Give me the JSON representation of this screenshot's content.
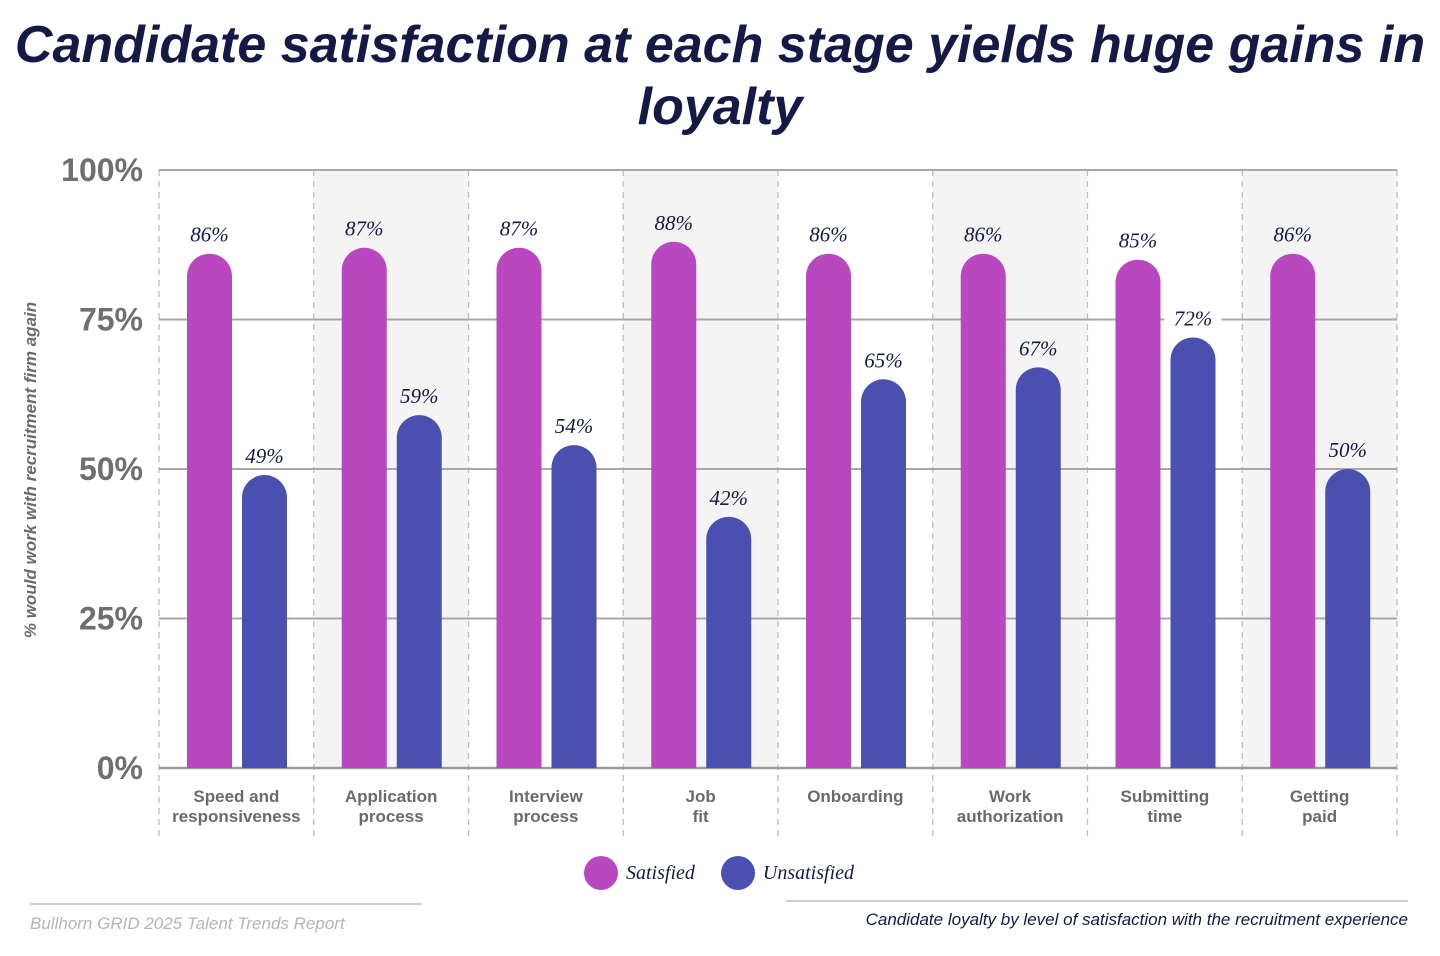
{
  "chart_data": {
    "type": "bar",
    "title": "Candidate satisfaction at each stage yields huge gains in loyalty",
    "ylabel": "% would work with recruitment firm again",
    "xlabel": "",
    "ylim": [
      0,
      100
    ],
    "yticks": [
      "0%",
      "25%",
      "50%",
      "75%",
      "100%"
    ],
    "grid": true,
    "legend_position": "bottom",
    "categories": [
      [
        "Speed and",
        "responsiveness"
      ],
      [
        "Application",
        "process"
      ],
      [
        "Interview",
        "process"
      ],
      [
        "Job",
        "fit"
      ],
      [
        "Onboarding"
      ],
      [
        "Work",
        "authorization"
      ],
      [
        "Submitting",
        "time"
      ],
      [
        "Getting",
        "paid"
      ]
    ],
    "series": [
      {
        "name": "Satisfied",
        "color": "#b847c0",
        "values": [
          86,
          87,
          87,
          88,
          86,
          86,
          85,
          86
        ],
        "labels": [
          "86%",
          "87%",
          "87%",
          "88%",
          "86%",
          "86%",
          "85%",
          "86%"
        ]
      },
      {
        "name": "Unsatisfied",
        "color": "#4a50b0",
        "values": [
          49,
          59,
          54,
          42,
          65,
          67,
          72,
          50
        ],
        "labels": [
          "49%",
          "59%",
          "54%",
          "42%",
          "65%",
          "67%",
          "72%",
          "50%"
        ]
      }
    ]
  },
  "footer": {
    "source": "Bullhorn GRID 2025 Talent Trends Report",
    "caption": "Candidate loyalty by level of satisfaction with the recruitment experience"
  }
}
